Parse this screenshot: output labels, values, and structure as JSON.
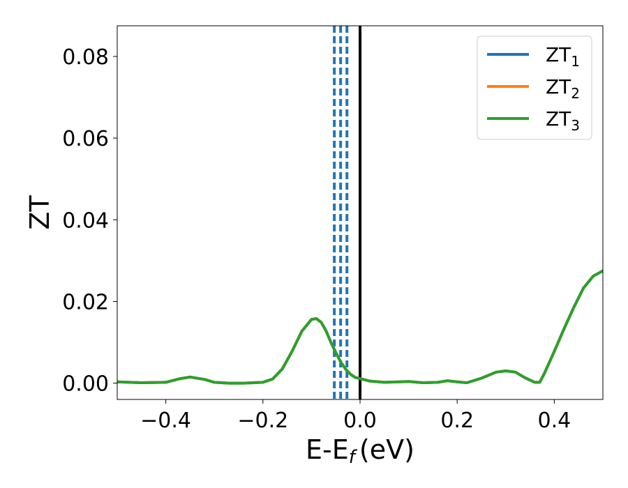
{
  "chart_data": {
    "type": "line",
    "xlabel": "E-E",
    "xlabel_sub": "f",
    "xlabel_unit": "(eV)",
    "ylabel": "ZT",
    "xlim": [
      -0.5,
      0.5
    ],
    "ylim": [
      -0.004,
      0.0875
    ],
    "x_ticks": [
      -0.4,
      -0.2,
      0.0,
      0.2,
      0.4
    ],
    "x_tick_labels": [
      "−0.4",
      "−0.2",
      "0.0",
      "0.2",
      "0.4"
    ],
    "y_ticks": [
      0.0,
      0.02,
      0.04,
      0.06,
      0.08
    ],
    "y_tick_labels": [
      "0.00",
      "0.02",
      "0.04",
      "0.06",
      "0.08"
    ],
    "grid": false,
    "legend_position": "top-right",
    "series": [
      {
        "name": "ZT",
        "sub": "1",
        "color": "#1f77b4",
        "x": [
          -0.5,
          -0.45,
          -0.4,
          -0.37,
          -0.35,
          -0.32,
          -0.3,
          -0.27,
          -0.24,
          -0.2,
          -0.18,
          -0.16,
          -0.14,
          -0.12,
          -0.1,
          -0.09,
          -0.08,
          -0.07,
          -0.06,
          -0.05,
          -0.04,
          -0.03,
          -0.02,
          -0.01,
          0.0,
          0.02,
          0.05,
          0.08,
          0.1,
          0.13,
          0.16,
          0.18,
          0.2,
          0.22,
          0.25,
          0.28,
          0.3,
          0.32,
          0.34,
          0.36,
          0.37,
          0.38,
          0.4,
          0.42,
          0.44,
          0.46,
          0.48,
          0.5
        ],
        "y": [
          0.0003,
          0.0001,
          0.0002,
          0.0011,
          0.0015,
          0.0009,
          0.0002,
          0.0,
          0.0,
          0.0002,
          0.001,
          0.0035,
          0.0078,
          0.0127,
          0.0156,
          0.0158,
          0.0149,
          0.0128,
          0.01,
          0.0075,
          0.0052,
          0.0035,
          0.0022,
          0.0014,
          0.0011,
          0.0005,
          0.0002,
          0.0003,
          0.0004,
          0.0001,
          0.0002,
          0.0006,
          0.0003,
          0.0001,
          0.0012,
          0.0027,
          0.003,
          0.0027,
          0.0013,
          0.0002,
          0.0002,
          0.0025,
          0.0078,
          0.0133,
          0.0185,
          0.0233,
          0.0262,
          0.0275
        ]
      },
      {
        "name": "ZT",
        "sub": "2",
        "color": "#ff7f0e",
        "x": [
          -0.5,
          -0.45,
          -0.4,
          -0.37,
          -0.35,
          -0.32,
          -0.3,
          -0.27,
          -0.24,
          -0.2,
          -0.18,
          -0.16,
          -0.14,
          -0.12,
          -0.1,
          -0.09,
          -0.08,
          -0.07,
          -0.06,
          -0.05,
          -0.04,
          -0.03,
          -0.02,
          -0.01,
          0.0,
          0.02,
          0.05,
          0.08,
          0.1,
          0.13,
          0.16,
          0.18,
          0.2,
          0.22,
          0.25,
          0.28,
          0.3,
          0.32,
          0.34,
          0.36,
          0.37,
          0.38,
          0.4,
          0.42,
          0.44,
          0.46,
          0.48,
          0.5
        ],
        "y": [
          0.0003,
          0.0001,
          0.0002,
          0.0011,
          0.0015,
          0.0009,
          0.0002,
          0.0,
          0.0,
          0.0002,
          0.001,
          0.0035,
          0.0078,
          0.0127,
          0.0156,
          0.0158,
          0.0149,
          0.0128,
          0.01,
          0.0075,
          0.0052,
          0.0035,
          0.0022,
          0.0014,
          0.0011,
          0.0005,
          0.0002,
          0.0003,
          0.0004,
          0.0001,
          0.0002,
          0.0006,
          0.0003,
          0.0001,
          0.0012,
          0.0027,
          0.003,
          0.0027,
          0.0013,
          0.0002,
          0.0002,
          0.0025,
          0.0078,
          0.0133,
          0.0185,
          0.0233,
          0.0262,
          0.0275
        ]
      },
      {
        "name": "ZT",
        "sub": "3",
        "color": "#2ca02c",
        "x": [
          -0.5,
          -0.45,
          -0.4,
          -0.37,
          -0.35,
          -0.32,
          -0.3,
          -0.27,
          -0.24,
          -0.2,
          -0.18,
          -0.16,
          -0.14,
          -0.12,
          -0.1,
          -0.09,
          -0.08,
          -0.07,
          -0.06,
          -0.05,
          -0.04,
          -0.03,
          -0.02,
          -0.01,
          0.0,
          0.02,
          0.05,
          0.08,
          0.1,
          0.13,
          0.16,
          0.18,
          0.2,
          0.22,
          0.25,
          0.28,
          0.3,
          0.32,
          0.34,
          0.36,
          0.37,
          0.38,
          0.4,
          0.42,
          0.44,
          0.46,
          0.48,
          0.5
        ],
        "y": [
          0.0003,
          0.0001,
          0.0002,
          0.0011,
          0.0015,
          0.0009,
          0.0002,
          0.0,
          0.0,
          0.0002,
          0.001,
          0.0035,
          0.0078,
          0.0127,
          0.0156,
          0.0158,
          0.0149,
          0.0128,
          0.01,
          0.0075,
          0.0052,
          0.0035,
          0.0022,
          0.0014,
          0.0011,
          0.0005,
          0.0002,
          0.0003,
          0.0004,
          0.0001,
          0.0002,
          0.0006,
          0.0003,
          0.0001,
          0.0012,
          0.0027,
          0.003,
          0.0027,
          0.0013,
          0.0002,
          0.0002,
          0.0025,
          0.0078,
          0.0133,
          0.0185,
          0.0233,
          0.0262,
          0.0275
        ]
      }
    ],
    "vertical_lines": [
      {
        "x": -0.053,
        "style": "dashed",
        "color": "#1f77b4"
      },
      {
        "x": -0.04,
        "style": "dashed",
        "color": "#1f77b4"
      },
      {
        "x": -0.027,
        "style": "dashed",
        "color": "#1f77b4"
      },
      {
        "x": 0.0,
        "style": "solid",
        "color": "#000000"
      }
    ]
  }
}
